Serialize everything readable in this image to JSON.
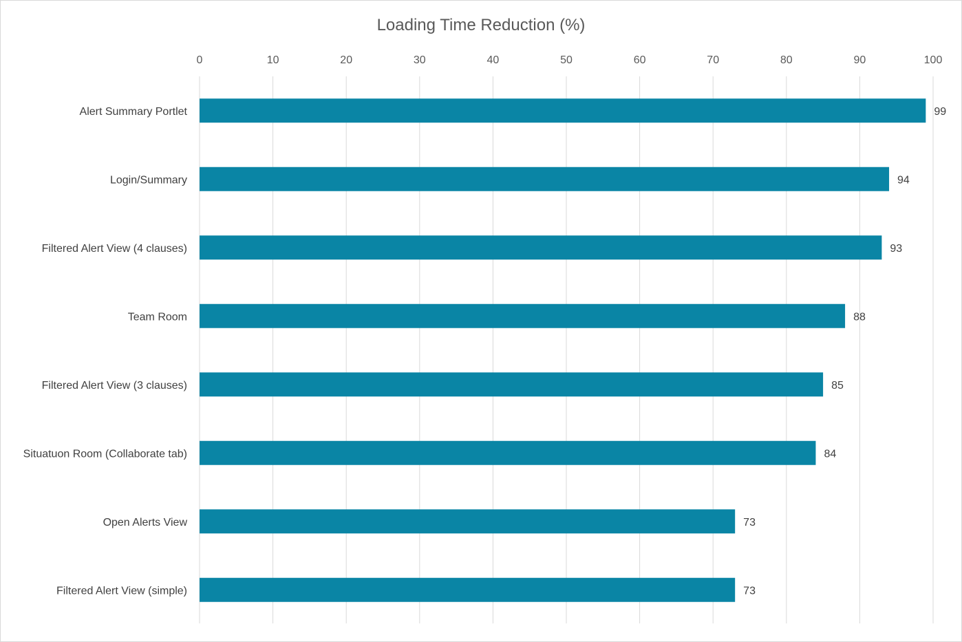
{
  "chart_data": {
    "type": "bar",
    "orientation": "horizontal",
    "title": "Loading Time Reduction (%)",
    "xlabel": "",
    "ylabel": "",
    "xlim": [
      0,
      100
    ],
    "x_ticks": [
      0,
      10,
      20,
      30,
      40,
      50,
      60,
      70,
      80,
      90,
      100
    ],
    "x_axis_position": "top",
    "grid": "vertical",
    "legend": "none",
    "bar_color": "#0a85a5",
    "categories": [
      "Alert Summary Portlet",
      "Login/Summary",
      "Filtered Alert View (4 clauses)",
      "Team Room",
      "Filtered Alert View (3 clauses)",
      "Situatuon Room (Collaborate tab)",
      "Open Alerts View",
      "Filtered Alert View (simple)"
    ],
    "values": [
      99,
      94,
      93,
      88,
      85,
      84,
      73,
      73
    ],
    "data_labels": true
  }
}
